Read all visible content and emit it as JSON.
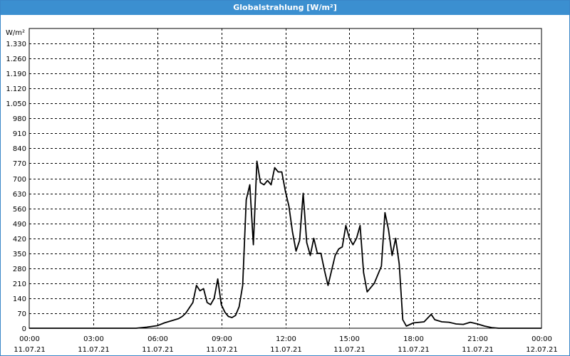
{
  "window": {
    "title": "Globalstrahlung [W/m²]"
  },
  "chart_data": {
    "type": "line",
    "title": "Globalstrahlung [W/m²]",
    "ylabel": "W/m²",
    "xlabel": "",
    "ylim": [
      0,
      1400
    ],
    "xlim_hours": [
      0,
      24
    ],
    "grid": true,
    "yticks": [
      {
        "value": 0,
        "label": "0"
      },
      {
        "value": 70,
        "label": "70"
      },
      {
        "value": 140,
        "label": "140"
      },
      {
        "value": 210,
        "label": "210"
      },
      {
        "value": 280,
        "label": "280"
      },
      {
        "value": 350,
        "label": "350"
      },
      {
        "value": 420,
        "label": "420"
      },
      {
        "value": 490,
        "label": "490"
      },
      {
        "value": 560,
        "label": "560"
      },
      {
        "value": 630,
        "label": "630"
      },
      {
        "value": 700,
        "label": "700"
      },
      {
        "value": 770,
        "label": "770"
      },
      {
        "value": 840,
        "label": "840"
      },
      {
        "value": 910,
        "label": "910"
      },
      {
        "value": 980,
        "label": "980"
      },
      {
        "value": 1050,
        "label": "1.050"
      },
      {
        "value": 1120,
        "label": "1.120"
      },
      {
        "value": 1190,
        "label": "1.190"
      },
      {
        "value": 1260,
        "label": "1.260"
      },
      {
        "value": 1330,
        "label": "1.330"
      }
    ],
    "xticks": [
      {
        "hour": 0,
        "time": "00:00",
        "date": "11.07.21"
      },
      {
        "hour": 3,
        "time": "03:00",
        "date": "11.07.21"
      },
      {
        "hour": 6,
        "time": "06:00",
        "date": "11.07.21"
      },
      {
        "hour": 9,
        "time": "09:00",
        "date": "11.07.21"
      },
      {
        "hour": 12,
        "time": "12:00",
        "date": "11.07.21"
      },
      {
        "hour": 15,
        "time": "15:00",
        "date": "11.07.21"
      },
      {
        "hour": 18,
        "time": "18:00",
        "date": "11.07.21"
      },
      {
        "hour": 21,
        "time": "21:00",
        "date": "11.07.21"
      },
      {
        "hour": 24,
        "time": "00:00",
        "date": "12.07.21"
      }
    ],
    "series": [
      {
        "color": "#000000",
        "x": [
          "2021-07-11 00:00",
          "2021-07-11 05:00",
          "2021-07-11 05:30",
          "2021-07-11 06:00",
          "2021-07-11 06:20",
          "2021-07-11 06:40",
          "2021-07-11 07:00",
          "2021-07-11 07:10",
          "2021-07-11 07:20",
          "2021-07-11 07:30",
          "2021-07-11 07:40",
          "2021-07-11 07:50",
          "2021-07-11 08:00",
          "2021-07-11 08:10",
          "2021-07-11 08:20",
          "2021-07-11 08:30",
          "2021-07-11 08:40",
          "2021-07-11 08:50",
          "2021-07-11 09:00",
          "2021-07-11 09:10",
          "2021-07-11 09:20",
          "2021-07-11 09:30",
          "2021-07-11 09:40",
          "2021-07-11 09:50",
          "2021-07-11 10:00",
          "2021-07-11 10:10",
          "2021-07-11 10:20",
          "2021-07-11 10:30",
          "2021-07-11 10:40",
          "2021-07-11 10:50",
          "2021-07-11 11:00",
          "2021-07-11 11:10",
          "2021-07-11 11:20",
          "2021-07-11 11:30",
          "2021-07-11 11:40",
          "2021-07-11 11:50",
          "2021-07-11 12:00",
          "2021-07-11 12:10",
          "2021-07-11 12:20",
          "2021-07-11 12:30",
          "2021-07-11 12:40",
          "2021-07-11 12:50",
          "2021-07-11 13:00",
          "2021-07-11 13:10",
          "2021-07-11 13:20",
          "2021-07-11 13:30",
          "2021-07-11 13:40",
          "2021-07-11 13:50",
          "2021-07-11 14:00",
          "2021-07-11 14:10",
          "2021-07-11 14:20",
          "2021-07-11 14:30",
          "2021-07-11 14:40",
          "2021-07-11 14:50",
          "2021-07-11 15:00",
          "2021-07-11 15:10",
          "2021-07-11 15:20",
          "2021-07-11 15:30",
          "2021-07-11 15:40",
          "2021-07-11 15:50",
          "2021-07-11 16:00",
          "2021-07-11 16:10",
          "2021-07-11 16:20",
          "2021-07-11 16:30",
          "2021-07-11 16:40",
          "2021-07-11 16:50",
          "2021-07-11 17:00",
          "2021-07-11 17:10",
          "2021-07-11 17:20",
          "2021-07-11 17:30",
          "2021-07-11 17:40",
          "2021-07-11 18:00",
          "2021-07-11 18:30",
          "2021-07-11 18:50",
          "2021-07-11 19:00",
          "2021-07-11 19:10",
          "2021-07-11 19:20",
          "2021-07-11 19:40",
          "2021-07-11 20:00",
          "2021-07-11 20:20",
          "2021-07-11 20:40",
          "2021-07-11 21:00",
          "2021-07-11 21:20",
          "2021-07-11 21:40",
          "2021-07-11 22:00",
          "2021-07-11 23:00",
          "2021-07-12 00:00"
        ],
        "values": [
          0,
          0,
          5,
          12,
          25,
          35,
          45,
          55,
          70,
          95,
          120,
          200,
          175,
          185,
          120,
          110,
          140,
          230,
          110,
          75,
          55,
          50,
          60,
          100,
          200,
          600,
          670,
          390,
          780,
          680,
          670,
          690,
          670,
          750,
          730,
          730,
          640,
          570,
          450,
          360,
          410,
          630,
          400,
          340,
          420,
          350,
          350,
          270,
          200,
          270,
          340,
          370,
          380,
          480,
          420,
          390,
          420,
          480,
          260,
          170,
          190,
          210,
          250,
          290,
          540,
          460,
          340,
          420,
          300,
          40,
          10,
          25,
          30,
          65,
          40,
          35,
          30,
          28,
          20,
          18,
          28,
          20,
          10,
          3,
          0,
          0,
          0
        ]
      }
    ]
  }
}
